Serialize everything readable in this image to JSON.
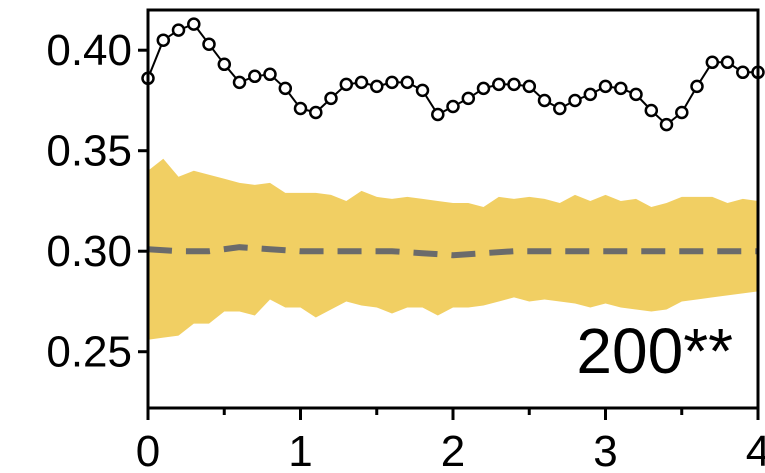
{
  "chart_data": {
    "type": "line",
    "title": "",
    "xlabel": "",
    "ylabel": "",
    "xlim": [
      0,
      4
    ],
    "ylim": [
      0.222,
      0.42
    ],
    "grid": false,
    "legend": "none",
    "x_ticks": [
      "0",
      "1",
      "2",
      "3",
      "4"
    ],
    "y_ticks": [
      "0.25",
      "0.30",
      "0.35",
      "0.40"
    ],
    "annotation": "200**",
    "band_color": "#f1cf63",
    "mean_line_color": "#6b6b6b",
    "series": [
      {
        "style": "line-with-open-circles",
        "x": [
          0,
          0.1,
          0.2,
          0.3,
          0.4,
          0.5,
          0.6,
          0.7,
          0.8,
          0.9,
          1.0,
          1.1,
          1.2,
          1.3,
          1.4,
          1.5,
          1.6,
          1.7,
          1.8,
          1.9,
          2.0,
          2.1,
          2.2,
          2.3,
          2.4,
          2.5,
          2.6,
          2.7,
          2.8,
          2.9,
          3.0,
          3.1,
          3.2,
          3.3,
          3.4,
          3.5,
          3.6,
          3.7,
          3.8,
          3.9,
          4.0
        ],
        "values": [
          0.386,
          0.405,
          0.41,
          0.413,
          0.403,
          0.393,
          0.384,
          0.387,
          0.388,
          0.381,
          0.371,
          0.369,
          0.376,
          0.383,
          0.384,
          0.382,
          0.384,
          0.384,
          0.38,
          0.368,
          0.372,
          0.376,
          0.381,
          0.383,
          0.383,
          0.382,
          0.375,
          0.371,
          0.375,
          0.378,
          0.382,
          0.381,
          0.378,
          0.37,
          0.363,
          0.369,
          0.382,
          0.394,
          0.394,
          0.389,
          0.389
        ]
      },
      {
        "style": "dashed-mean",
        "x": [
          0,
          0.2,
          0.4,
          0.6,
          0.8,
          1.0,
          1.2,
          1.4,
          1.6,
          1.8,
          2.0,
          2.2,
          2.4,
          2.6,
          2.8,
          3.0,
          3.2,
          3.4,
          3.6,
          3.8,
          4.0
        ],
        "values": [
          0.301,
          0.3,
          0.3,
          0.302,
          0.301,
          0.3,
          0.3,
          0.3,
          0.3,
          0.299,
          0.298,
          0.299,
          0.3,
          0.3,
          0.3,
          0.3,
          0.3,
          0.3,
          0.3,
          0.3,
          0.3
        ]
      },
      {
        "style": "band",
        "x": [
          0,
          0.1,
          0.2,
          0.3,
          0.4,
          0.5,
          0.6,
          0.7,
          0.8,
          0.9,
          1.0,
          1.1,
          1.2,
          1.3,
          1.4,
          1.5,
          1.6,
          1.7,
          1.8,
          1.9,
          2.0,
          2.1,
          2.2,
          2.3,
          2.4,
          2.5,
          2.6,
          2.7,
          2.8,
          2.9,
          3.0,
          3.1,
          3.2,
          3.3,
          3.4,
          3.5,
          3.6,
          3.7,
          3.8,
          3.9,
          4.0
        ],
        "upper": [
          0.34,
          0.346,
          0.337,
          0.34,
          0.338,
          0.336,
          0.334,
          0.333,
          0.334,
          0.329,
          0.329,
          0.329,
          0.328,
          0.325,
          0.33,
          0.327,
          0.326,
          0.327,
          0.326,
          0.325,
          0.324,
          0.324,
          0.322,
          0.327,
          0.326,
          0.327,
          0.326,
          0.324,
          0.328,
          0.325,
          0.328,
          0.325,
          0.326,
          0.322,
          0.324,
          0.327,
          0.327,
          0.327,
          0.324,
          0.326,
          0.325
        ],
        "lower": [
          0.256,
          0.257,
          0.258,
          0.264,
          0.264,
          0.27,
          0.27,
          0.268,
          0.276,
          0.272,
          0.272,
          0.267,
          0.271,
          0.275,
          0.273,
          0.272,
          0.269,
          0.272,
          0.272,
          0.268,
          0.272,
          0.272,
          0.273,
          0.275,
          0.277,
          0.275,
          0.276,
          0.275,
          0.274,
          0.272,
          0.274,
          0.272,
          0.271,
          0.27,
          0.271,
          0.275,
          0.276,
          0.277,
          0.278,
          0.279,
          0.28
        ]
      }
    ]
  }
}
